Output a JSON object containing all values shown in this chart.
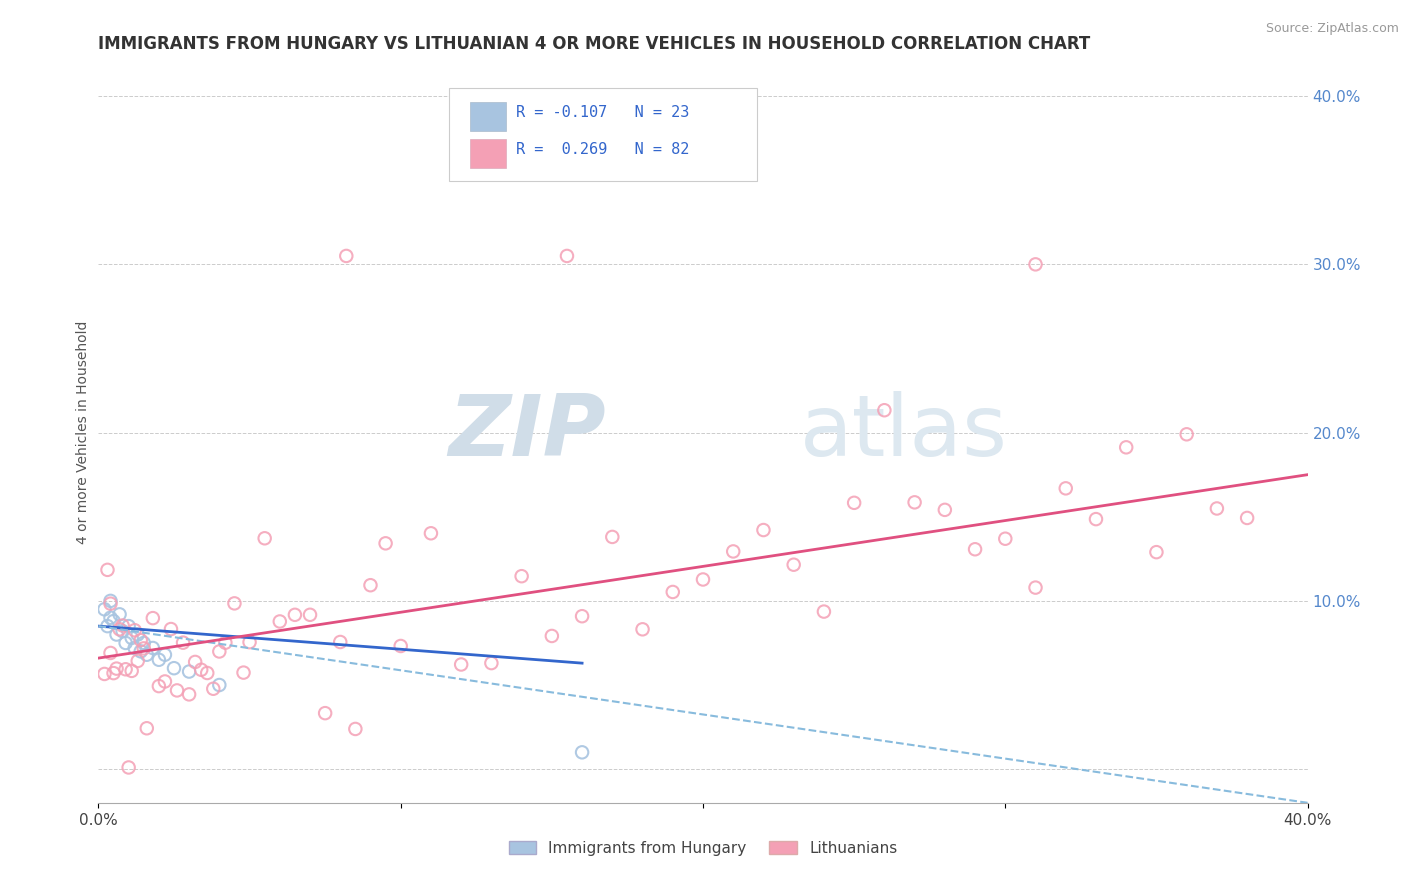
{
  "title": "IMMIGRANTS FROM HUNGARY VS LITHUANIAN 4 OR MORE VEHICLES IN HOUSEHOLD CORRELATION CHART",
  "source": "Source: ZipAtlas.com",
  "ylabel": "4 or more Vehicles in Household",
  "xlim": [
    0.0,
    0.4
  ],
  "ylim": [
    -0.02,
    0.42
  ],
  "x_tick_positions": [
    0.0,
    0.1,
    0.2,
    0.3,
    0.4
  ],
  "x_tick_labels": [
    "0.0%",
    "",
    "",
    "",
    "40.0%"
  ],
  "y_tick_positions": [
    0.0,
    0.1,
    0.2,
    0.3,
    0.4
  ],
  "y_tick_labels_right": [
    "",
    "10.0%",
    "20.0%",
    "30.0%",
    "40.0%"
  ],
  "legend_label1": "Immigrants from Hungary",
  "legend_label2": "Lithuanians",
  "color_hungary": "#a8c4e0",
  "color_lithuanian": "#f4a0b5",
  "trendline_hungary_solid_color": "#3366cc",
  "trendline_lithuania_solid_color": "#e05080",
  "trendline_dashed_color": "#88bbdd",
  "background_color": "#ffffff",
  "hungary_R": -0.107,
  "hungary_N": 23,
  "lithuanian_R": 0.269,
  "lithuanian_N": 82,
  "hungary_trendline_x0": 0.0,
  "hungary_trendline_y0": 0.085,
  "hungary_trendline_x1": 0.16,
  "hungary_trendline_y1": 0.063,
  "dashed_trendline_x0": 0.0,
  "dashed_trendline_y0": 0.085,
  "dashed_trendline_x1": 0.4,
  "dashed_trendline_y1": -0.02,
  "lith_trendline_x0": 0.0,
  "lith_trendline_y0": 0.066,
  "lith_trendline_x1": 0.4,
  "lith_trendline_y1": 0.175
}
